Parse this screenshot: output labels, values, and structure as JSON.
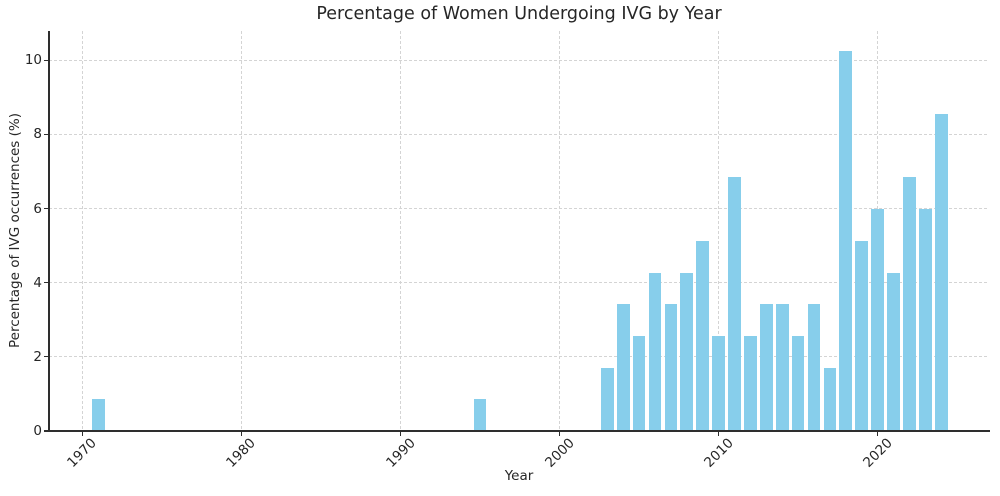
{
  "chart_data": {
    "type": "bar",
    "title": "Percentage of Women Undergoing IVG by Year",
    "xlabel": "Year",
    "ylabel": "Percentage of IVG occurrences (%)",
    "x": [
      1971,
      1995,
      2003,
      2004,
      2005,
      2006,
      2007,
      2008,
      2009,
      2010,
      2011,
      2012,
      2013,
      2014,
      2015,
      2016,
      2017,
      2018,
      2019,
      2020,
      2021,
      2022,
      2023,
      2024
    ],
    "values": [
      0.85,
      0.85,
      1.71,
      3.42,
      2.56,
      4.27,
      3.42,
      4.27,
      5.13,
      2.56,
      6.84,
      2.56,
      3.42,
      3.42,
      2.56,
      3.42,
      1.71,
      10.26,
      5.13,
      5.98,
      4.27,
      6.84,
      5.98,
      8.55
    ],
    "bar_width_years": 0.8,
    "xticks": [
      1970,
      1980,
      1990,
      2000,
      2010,
      2020
    ],
    "yticks": [
      0,
      2,
      4,
      6,
      8,
      10
    ],
    "xtick_rotation_deg": 45,
    "xlim": [
      1967.9,
      2027.0
    ],
    "ylim": [
      0,
      10.79
    ],
    "legend": "none",
    "grid": {
      "visible": true,
      "style": "dashed",
      "axes": "both",
      "position": "below-bars"
    },
    "colors": {
      "bar": "#87CEEB",
      "grid": "#d4d4d4",
      "spine": "#2e2e2e",
      "text": "#262626",
      "background": "#ffffff"
    }
  }
}
